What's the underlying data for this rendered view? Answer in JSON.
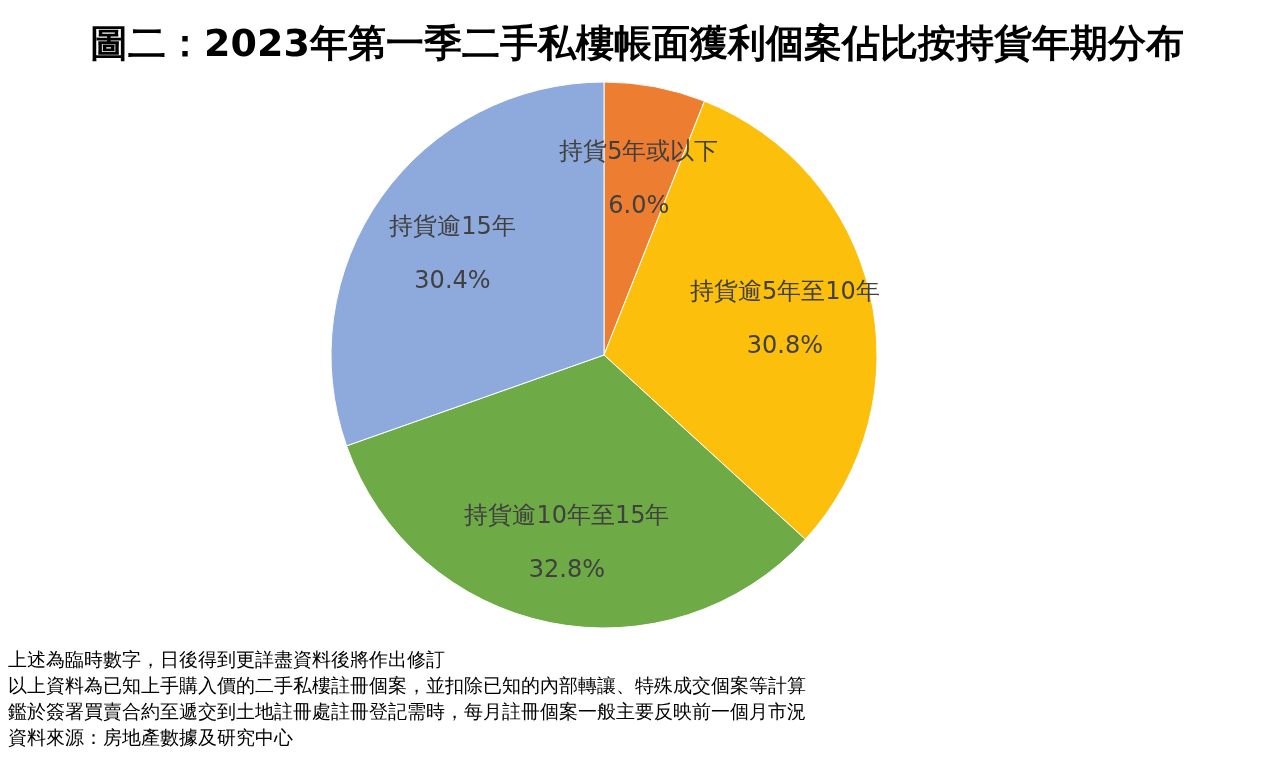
{
  "chart_data": {
    "type": "pie",
    "title": "圖二：2023年第一季二手私樓帳面獲利個案佔比按持貨年期分布",
    "categories": [
      "持貨5年或以下",
      "持貨逾5年至10年",
      "持貨逾10年至15年",
      "持貨逾15年"
    ],
    "values": [
      6.0,
      30.8,
      32.8,
      30.4
    ],
    "value_labels": [
      "6.0%",
      "30.8%",
      "32.8%",
      "30.4%"
    ],
    "colors": [
      "#ed7d31",
      "#fbbf0c",
      "#6eaa45",
      "#8eaadc"
    ],
    "legend": false,
    "annotations": [
      "上述為臨時數字，日後得到更詳盡資料後將作出修訂",
      "以上資料為已知上手購入價的二手私樓註冊個案，並扣除已知的內部轉讓、特殊成交個案等計算",
      "鑑於簽署買賣合約至遞交到土地註冊處註冊登記需時，每月註冊個案一般主要反映前一個月市況",
      "資料來源：房地產數據及研究中心"
    ]
  }
}
